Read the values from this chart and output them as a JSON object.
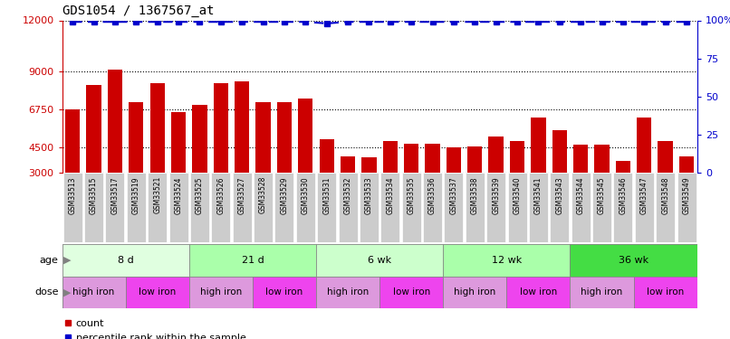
{
  "title": "GDS1054 / 1367567_at",
  "samples": [
    "GSM33513",
    "GSM33515",
    "GSM33517",
    "GSM33519",
    "GSM33521",
    "GSM33524",
    "GSM33525",
    "GSM33526",
    "GSM33527",
    "GSM33528",
    "GSM33529",
    "GSM33530",
    "GSM33531",
    "GSM33532",
    "GSM33533",
    "GSM33534",
    "GSM33535",
    "GSM33536",
    "GSM33537",
    "GSM33538",
    "GSM33539",
    "GSM33540",
    "GSM33541",
    "GSM33543",
    "GSM33544",
    "GSM33545",
    "GSM33546",
    "GSM33547",
    "GSM33548",
    "GSM33549"
  ],
  "bar_values": [
    6750,
    8200,
    9100,
    7200,
    8300,
    6600,
    7000,
    8300,
    8400,
    7200,
    7200,
    7400,
    5000,
    4000,
    3900,
    4900,
    4700,
    4700,
    4500,
    4550,
    5150,
    4900,
    6250,
    5500,
    4650,
    4650,
    3700,
    6250,
    4900,
    4000
  ],
  "percentile_values": [
    99,
    99,
    99,
    99,
    99,
    99,
    99,
    99,
    99,
    99,
    99,
    99,
    98,
    99,
    99,
    99,
    99,
    99,
    99,
    99,
    99,
    99,
    99,
    99,
    99,
    99,
    99,
    99,
    99,
    99
  ],
  "bar_color": "#cc0000",
  "dot_color": "#0000cc",
  "left_ylim": [
    3000,
    12000
  ],
  "right_ylim": [
    0,
    100
  ],
  "left_yticks": [
    3000,
    4500,
    6750,
    9000,
    12000
  ],
  "right_yticks": [
    0,
    25,
    50,
    75,
    100
  ],
  "right_yticklabels": [
    "0",
    "25",
    "50",
    "75",
    "100%"
  ],
  "age_groups": [
    {
      "label": "8 d",
      "start": 0,
      "end": 6,
      "color": "#e0ffe0"
    },
    {
      "label": "21 d",
      "start": 6,
      "end": 12,
      "color": "#aaffaa"
    },
    {
      "label": "6 wk",
      "start": 12,
      "end": 18,
      "color": "#ccffcc"
    },
    {
      "label": "12 wk",
      "start": 18,
      "end": 24,
      "color": "#aaffaa"
    },
    {
      "label": "36 wk",
      "start": 24,
      "end": 30,
      "color": "#44dd44"
    }
  ],
  "dose_groups": [
    {
      "label": "high iron",
      "start": 0,
      "end": 3,
      "color": "#dd99dd"
    },
    {
      "label": "low iron",
      "start": 3,
      "end": 6,
      "color": "#ee44ee"
    },
    {
      "label": "high iron",
      "start": 6,
      "end": 9,
      "color": "#dd99dd"
    },
    {
      "label": "low iron",
      "start": 9,
      "end": 12,
      "color": "#ee44ee"
    },
    {
      "label": "high iron",
      "start": 12,
      "end": 15,
      "color": "#dd99dd"
    },
    {
      "label": "low iron",
      "start": 15,
      "end": 18,
      "color": "#ee44ee"
    },
    {
      "label": "high iron",
      "start": 18,
      "end": 21,
      "color": "#dd99dd"
    },
    {
      "label": "low iron",
      "start": 21,
      "end": 24,
      "color": "#ee44ee"
    },
    {
      "label": "high iron",
      "start": 24,
      "end": 27,
      "color": "#dd99dd"
    },
    {
      "label": "low iron",
      "start": 27,
      "end": 30,
      "color": "#ee44ee"
    }
  ],
  "left_axis_color": "#cc0000",
  "right_axis_color": "#0000cc",
  "xtick_bg_color": "#cccccc",
  "legend_items": [
    {
      "label": "count",
      "color": "#cc0000",
      "marker": "s"
    },
    {
      "label": "percentile rank within the sample",
      "color": "#0000cc",
      "marker": "s"
    }
  ]
}
